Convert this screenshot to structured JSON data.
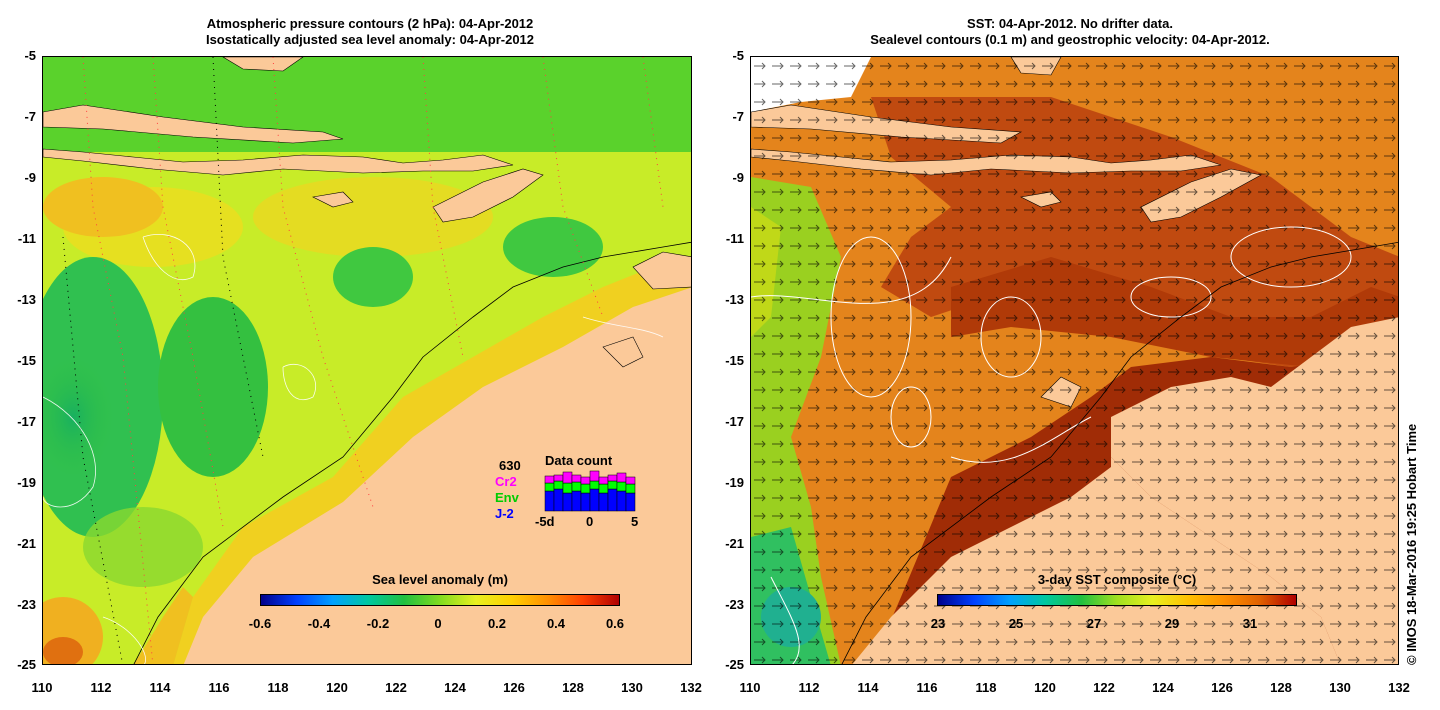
{
  "left_panel": {
    "title_line1": "Atmospheric pressure contours (2 hPa): 04-Apr-2012",
    "title_line2": "Isostatically adjusted sea level anomaly: 04-Apr-2012",
    "colorbar_title": "Sea level anomaly (m)",
    "colorbar_ticks": [
      "-0.6",
      "-0.4",
      "-0.2",
      "0",
      "0.2",
      "0.4",
      "0.6"
    ],
    "data_count": {
      "title": "Data count",
      "total": "630",
      "series": [
        {
          "name": "Cr2",
          "color": "#ff00ff"
        },
        {
          "name": "Env",
          "color": "#00ff00"
        },
        {
          "name": "J-2",
          "color": "#0000ff"
        }
      ],
      "x_ticks": [
        "-5d",
        "0",
        "5"
      ]
    }
  },
  "right_panel": {
    "title_line1": "SST: 04-Apr-2012. No drifter data.",
    "title_line2": "Sealevel contours (0.1 m) and geostrophic velocity: 04-Apr-2012.",
    "colorbar_title": "3-day SST composite (°C)",
    "colorbar_ticks": [
      "23",
      "25",
      "27",
      "29",
      "31"
    ]
  },
  "axes": {
    "y_ticks": [
      "-5",
      "-7",
      "-9",
      "-11",
      "-13",
      "-15",
      "-17",
      "-19",
      "-21",
      "-23",
      "-25"
    ],
    "x_ticks": [
      "110",
      "112",
      "114",
      "116",
      "118",
      "120",
      "122",
      "124",
      "126",
      "128",
      "130",
      "132"
    ]
  },
  "copyright": "© IMOS 18-Mar-2016 19:25 Hobart Time",
  "colors": {
    "land": "#fbc999",
    "sst_warm": "#c84a10",
    "sla_green": "#44d02a",
    "sla_yellow": "#d8f020"
  }
}
